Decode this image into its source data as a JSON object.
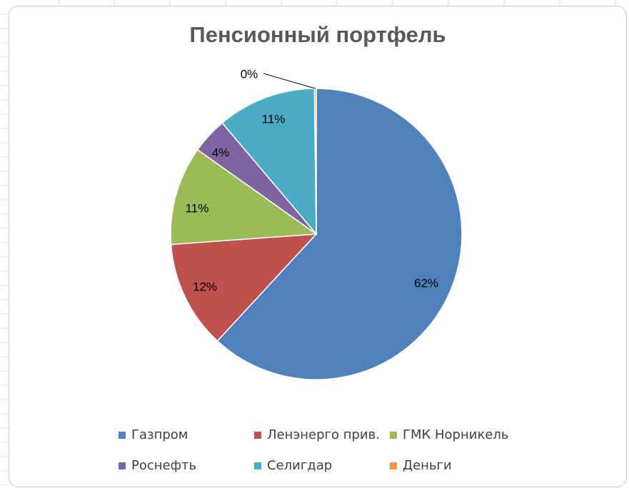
{
  "chart_data": {
    "type": "pie",
    "title": "Пенсионный портфель",
    "categories": [
      "Газпром",
      "Ленэнерго прив.",
      "ГМК Норникель",
      "Роснефть",
      "Селигдар",
      "Деньги"
    ],
    "values": [
      62,
      12,
      11,
      4,
      11,
      0.2
    ],
    "data_labels": [
      "62%",
      "12%",
      "11%",
      "4%",
      "11%",
      "0%"
    ],
    "colors": [
      "#4F81BD",
      "#C0504D",
      "#9BBB59",
      "#8064A2",
      "#4BACC6",
      "#F79646"
    ],
    "start_angle": "12 o'clock",
    "direction": "clockwise",
    "legend_position": "bottom"
  }
}
